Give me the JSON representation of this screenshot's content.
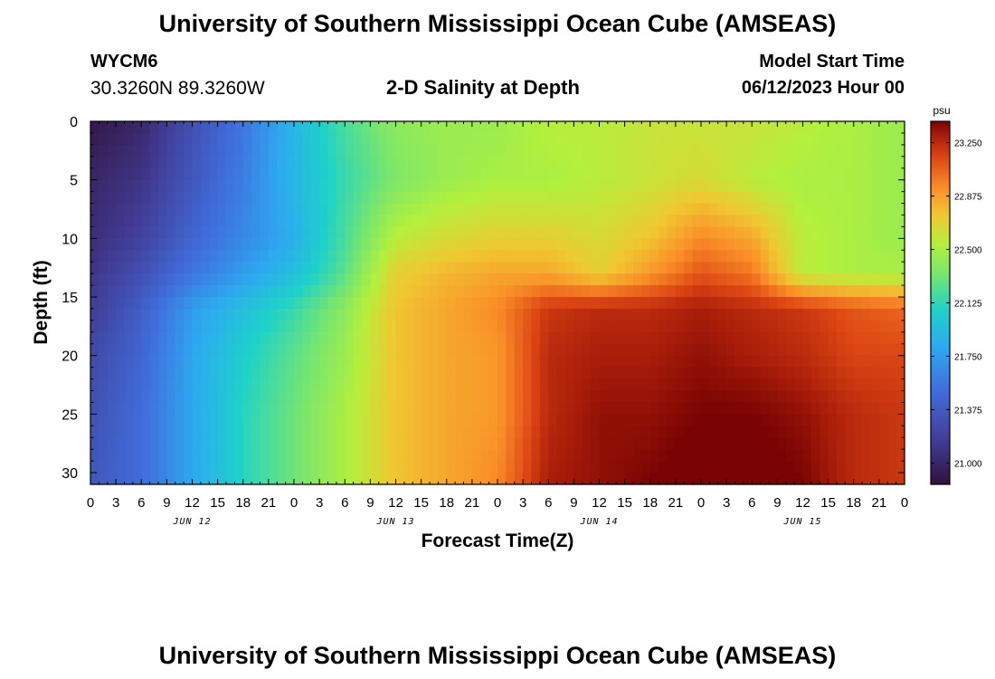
{
  "header": {
    "title": "University of Southern Mississippi Ocean Cube (AMSEAS)",
    "station": "WYCM6",
    "coords": "30.3260N  89.3260W",
    "subtitle": "2-D Salinity at Depth",
    "start_label": "Model Start Time",
    "start_value": "06/12/2023 Hour 00"
  },
  "footer": {
    "title": "University of Southern Mississippi Ocean Cube (AMSEAS)"
  },
  "chart_data": {
    "type": "heatmap",
    "title": "2-D Salinity at Depth",
    "xlabel": "Forecast Time(Z)",
    "ylabel": "Depth (ft)",
    "x_hours": [
      0,
      96
    ],
    "x_tick_labels": [
      "0",
      "3",
      "6",
      "9",
      "12",
      "15",
      "18",
      "21",
      "0",
      "3",
      "6",
      "9",
      "12",
      "15",
      "18",
      "21",
      "0",
      "3",
      "6",
      "9",
      "12",
      "15",
      "18",
      "21",
      "0",
      "3",
      "6",
      "9",
      "12",
      "15",
      "18",
      "21",
      "0"
    ],
    "date_labels": [
      {
        "label": "JUN 12",
        "hour": 12
      },
      {
        "label": "JUN 13",
        "hour": 36
      },
      {
        "label": "JUN 14",
        "hour": 60
      },
      {
        "label": "JUN 15",
        "hour": 84
      }
    ],
    "y_ticks": [
      0,
      5,
      10,
      15,
      20,
      25,
      30
    ],
    "ylim": [
      0,
      31
    ],
    "colorbar": {
      "unit": "psu",
      "ticks": [
        "21.000",
        "21.375",
        "21.750",
        "22.125",
        "22.500",
        "22.875",
        "23.250"
      ],
      "range": [
        20.85,
        23.4
      ]
    },
    "grid_hours": [
      0,
      6,
      12,
      18,
      24,
      30,
      36,
      42,
      48,
      54,
      60,
      66,
      72,
      78,
      84,
      90,
      96
    ],
    "grid_depths": [
      0,
      5,
      10,
      13,
      16,
      20,
      25,
      31
    ],
    "values": [
      [
        20.9,
        21.0,
        21.3,
        21.55,
        21.9,
        22.2,
        22.4,
        22.45,
        22.45,
        22.55,
        22.55,
        22.6,
        22.6,
        22.6,
        22.55,
        22.5,
        22.45
      ],
      [
        21.0,
        21.1,
        21.35,
        21.6,
        21.9,
        22.15,
        22.35,
        22.45,
        22.5,
        22.5,
        22.55,
        22.6,
        22.65,
        22.55,
        22.5,
        22.5,
        22.45
      ],
      [
        21.05,
        21.2,
        21.45,
        21.65,
        21.85,
        22.2,
        22.55,
        22.65,
        22.7,
        22.7,
        22.65,
        22.75,
        22.95,
        22.85,
        22.55,
        22.5,
        22.45
      ],
      [
        21.1,
        21.3,
        21.55,
        21.75,
        21.95,
        22.25,
        22.7,
        22.8,
        22.85,
        22.85,
        22.7,
        22.9,
        23.1,
        23.0,
        22.55,
        22.5,
        22.5
      ],
      [
        21.15,
        21.4,
        21.75,
        21.95,
        22.15,
        22.4,
        22.75,
        22.85,
        22.95,
        23.2,
        23.25,
        23.25,
        23.3,
        23.25,
        23.2,
        23.1,
        23.05
      ],
      [
        21.25,
        21.45,
        21.8,
        22.05,
        22.25,
        22.45,
        22.75,
        22.85,
        22.9,
        23.25,
        23.3,
        23.3,
        23.35,
        23.3,
        23.25,
        23.15,
        23.15
      ],
      [
        21.3,
        21.5,
        21.8,
        22.1,
        22.3,
        22.5,
        22.75,
        22.85,
        22.9,
        23.25,
        23.35,
        23.35,
        23.4,
        23.4,
        23.35,
        23.25,
        23.2
      ],
      [
        21.35,
        21.5,
        21.8,
        22.1,
        22.3,
        22.5,
        22.75,
        22.85,
        22.95,
        23.3,
        23.35,
        23.4,
        23.45,
        23.45,
        23.4,
        23.25,
        23.2
      ]
    ]
  }
}
